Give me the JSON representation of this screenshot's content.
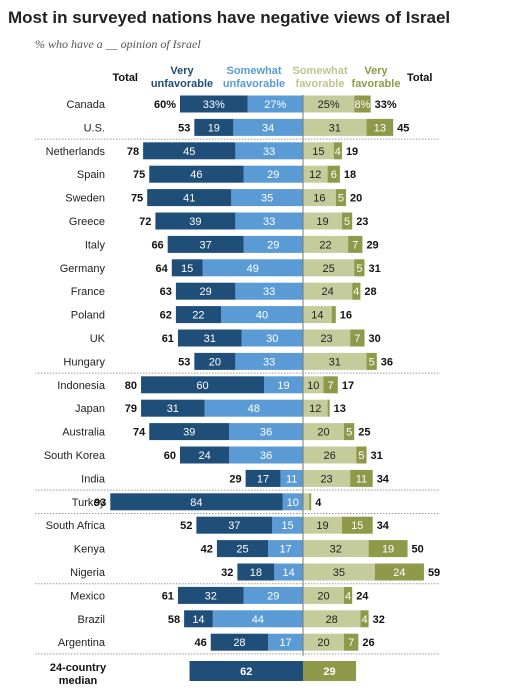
{
  "chart_data": {
    "type": "bar",
    "title": "Most in surveyed nations have negative views of Israel",
    "subtitle": "% who have a __ opinion of Israel",
    "headers": {
      "total_left": "Total",
      "very_unfavorable": "Very unfavorable",
      "somewhat_unfavorable": "Somewhat unfavorable",
      "somewhat_favorable": "Somewhat favorable",
      "very_favorable": "Very favorable",
      "total_right": "Total"
    },
    "colors": {
      "very_unfavorable": "#1f4e79",
      "somewhat_unfavorable": "#5b9bd5",
      "somewhat_favorable": "#c5cc9b",
      "very_favorable": "#8e9a4a",
      "header_unfavorable": "#1f4e79",
      "header_somewhat_unfavorable": "#5b9bd5",
      "header_somewhat_favorable": "#c0c58a",
      "header_very_favorable": "#8e9a4a"
    },
    "rows": [
      {
        "country": "Canada",
        "very_unfav": 33,
        "somewhat_unfav": 27,
        "total_unfav": 60,
        "somewhat_fav": 25,
        "very_fav": 8,
        "total_fav": 33,
        "pct": true
      },
      {
        "country": "U.S.",
        "very_unfav": 19,
        "somewhat_unfav": 34,
        "total_unfav": 53,
        "somewhat_fav": 31,
        "very_fav": 13,
        "total_fav": 45
      },
      {
        "country": "Netherlands",
        "very_unfav": 45,
        "somewhat_unfav": 33,
        "total_unfav": 78,
        "somewhat_fav": 15,
        "very_fav": 4,
        "total_fav": 19
      },
      {
        "country": "Spain",
        "very_unfav": 46,
        "somewhat_unfav": 29,
        "total_unfav": 75,
        "somewhat_fav": 12,
        "very_fav": 6,
        "total_fav": 18
      },
      {
        "country": "Sweden",
        "very_unfav": 41,
        "somewhat_unfav": 35,
        "total_unfav": 75,
        "somewhat_fav": 16,
        "very_fav": 5,
        "total_fav": 20
      },
      {
        "country": "Greece",
        "very_unfav": 39,
        "somewhat_unfav": 33,
        "total_unfav": 72,
        "somewhat_fav": 19,
        "very_fav": 5,
        "total_fav": 23
      },
      {
        "country": "Italy",
        "very_unfav": 37,
        "somewhat_unfav": 29,
        "total_unfav": 66,
        "somewhat_fav": 22,
        "very_fav": 7,
        "total_fav": 29
      },
      {
        "country": "Germany",
        "very_unfav": 15,
        "somewhat_unfav": 49,
        "total_unfav": 64,
        "somewhat_fav": 25,
        "very_fav": 5,
        "total_fav": 31
      },
      {
        "country": "France",
        "very_unfav": 29,
        "somewhat_unfav": 33,
        "total_unfav": 63,
        "somewhat_fav": 24,
        "very_fav": 4,
        "total_fav": 28
      },
      {
        "country": "Poland",
        "very_unfav": 22,
        "somewhat_unfav": 40,
        "total_unfav": 62,
        "somewhat_fav": 14,
        "very_fav": 2,
        "total_fav": 16
      },
      {
        "country": "UK",
        "very_unfav": 31,
        "somewhat_unfav": 30,
        "total_unfav": 61,
        "somewhat_fav": 23,
        "very_fav": 7,
        "total_fav": 30
      },
      {
        "country": "Hungary",
        "very_unfav": 20,
        "somewhat_unfav": 33,
        "total_unfav": 53,
        "somewhat_fav": 31,
        "very_fav": 5,
        "total_fav": 36
      },
      {
        "country": "Indonesia",
        "very_unfav": 60,
        "somewhat_unfav": 19,
        "total_unfav": 80,
        "somewhat_fav": 10,
        "very_fav": 7,
        "total_fav": 17
      },
      {
        "country": "Japan",
        "very_unfav": 31,
        "somewhat_unfav": 48,
        "total_unfav": 79,
        "somewhat_fav": 12,
        "very_fav": 1,
        "total_fav": 13
      },
      {
        "country": "Australia",
        "very_unfav": 39,
        "somewhat_unfav": 36,
        "total_unfav": 74,
        "somewhat_fav": 20,
        "very_fav": 5,
        "total_fav": 25
      },
      {
        "country": "South Korea",
        "very_unfav": 24,
        "somewhat_unfav": 36,
        "total_unfav": 60,
        "somewhat_fav": 26,
        "very_fav": 5,
        "total_fav": 31
      },
      {
        "country": "India",
        "very_unfav": 17,
        "somewhat_unfav": 11,
        "total_unfav": 29,
        "somewhat_fav": 23,
        "very_fav": 11,
        "total_fav": 34
      },
      {
        "country": "Turkey",
        "very_unfav": 84,
        "somewhat_unfav": 10,
        "total_unfav": 93,
        "somewhat_fav": 3,
        "very_fav": 1,
        "total_fav": 4
      },
      {
        "country": "South Africa",
        "very_unfav": 37,
        "somewhat_unfav": 15,
        "total_unfav": 52,
        "somewhat_fav": 19,
        "very_fav": 15,
        "total_fav": 34
      },
      {
        "country": "Kenya",
        "very_unfav": 25,
        "somewhat_unfav": 17,
        "total_unfav": 42,
        "somewhat_fav": 32,
        "very_fav": 19,
        "total_fav": 50
      },
      {
        "country": "Nigeria",
        "very_unfav": 18,
        "somewhat_unfav": 14,
        "total_unfav": 32,
        "somewhat_fav": 35,
        "very_fav": 24,
        "total_fav": 59
      },
      {
        "country": "Mexico",
        "very_unfav": 32,
        "somewhat_unfav": 29,
        "total_unfav": 61,
        "somewhat_fav": 20,
        "very_fav": 4,
        "total_fav": 24
      },
      {
        "country": "Brazil",
        "very_unfav": 14,
        "somewhat_unfav": 44,
        "total_unfav": 58,
        "somewhat_fav": 28,
        "very_fav": 4,
        "total_fav": 32
      },
      {
        "country": "Argentina",
        "very_unfav": 28,
        "somewhat_unfav": 17,
        "total_unfav": 46,
        "somewhat_fav": 20,
        "very_fav": 7,
        "total_fav": 26
      }
    ],
    "median": {
      "label": "24-country median",
      "unfav": 62,
      "fav": 29
    },
    "group_breaks_after": [
      "U.S.",
      "Hungary",
      "India",
      "Turkey",
      "Nigeria",
      "Argentina"
    ],
    "hidden_small_labels": [
      "2",
      "1",
      "3"
    ]
  }
}
